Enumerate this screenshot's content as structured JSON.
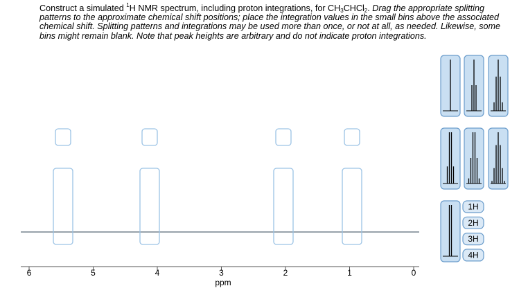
{
  "instructions": {
    "segments": [
      "Construct a simulated ",
      "1",
      "H NMR spectrum, including proton integrations, for CH",
      "3",
      "CHCl",
      "2",
      ". ",
      "Drag the appropriate splitting patterns to the approximate chemical shift positions; place the integration values in the small bins above the associated chemical shift. Splitting patterns and integrations may be used more than once, or not at all, as needed. Likewise, some bins might remain blank. Note that peak heights are arbitrary and do not indicate proton integrations."
    ]
  },
  "axis": {
    "ticks": [
      6,
      5,
      4,
      3,
      2,
      1,
      0
    ],
    "label": "ppm"
  },
  "integrations": [
    "1H",
    "2H",
    "3H",
    "4H"
  ]
}
